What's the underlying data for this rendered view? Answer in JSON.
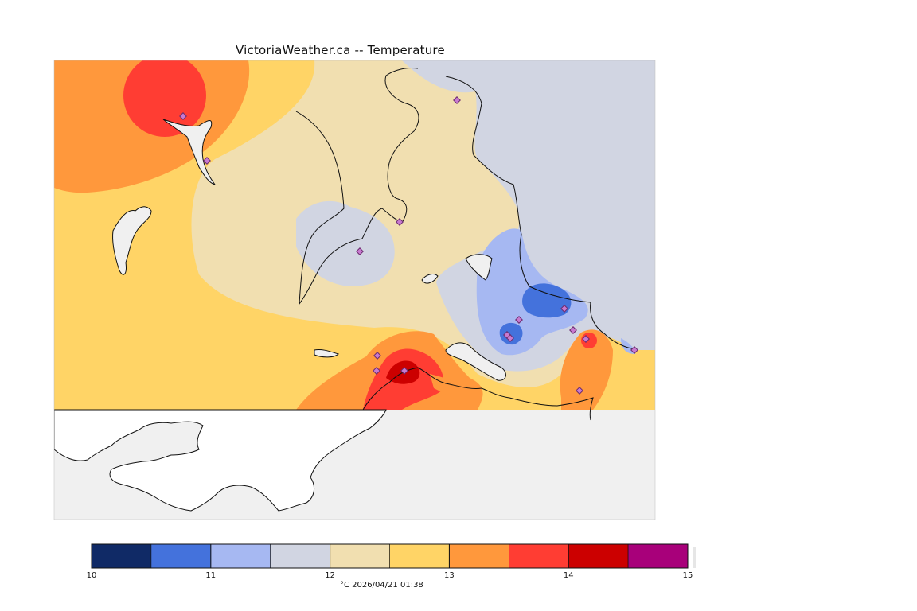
{
  "title": "VictoriaWeather.ca -- Temperature",
  "colors": {
    "background_sea": "#f0f0f0",
    "coastline": "#111111",
    "station_marker_fill": "#c87ad0",
    "station_marker_stroke": "#6b2b6e"
  },
  "legend": {
    "min": 10,
    "max": 15,
    "step": 0.5,
    "bins": [
      {
        "from": 10.0,
        "to": 10.5,
        "color": "#102a66"
      },
      {
        "from": 10.5,
        "to": 11.0,
        "color": "#4472dc"
      },
      {
        "from": 11.0,
        "to": 11.5,
        "color": "#a6b8f2"
      },
      {
        "from": 11.5,
        "to": 12.0,
        "color": "#d1d5e2"
      },
      {
        "from": 12.0,
        "to": 12.5,
        "color": "#f1dfb0"
      },
      {
        "from": 12.5,
        "to": 13.0,
        "color": "#ffd466"
      },
      {
        "from": 13.0,
        "to": 13.5,
        "color": "#ff983c"
      },
      {
        "from": 13.5,
        "to": 14.0,
        "color": "#ff3d33"
      },
      {
        "from": 14.0,
        "to": 14.5,
        "color": "#cc0000"
      },
      {
        "from": 14.5,
        "to": 15.0,
        "color": "#a8007a"
      }
    ],
    "tick_labels": [
      "10",
      "11",
      "12",
      "13",
      "14",
      "15"
    ],
    "footer": "°C  2026/04/21 01:38"
  }
}
